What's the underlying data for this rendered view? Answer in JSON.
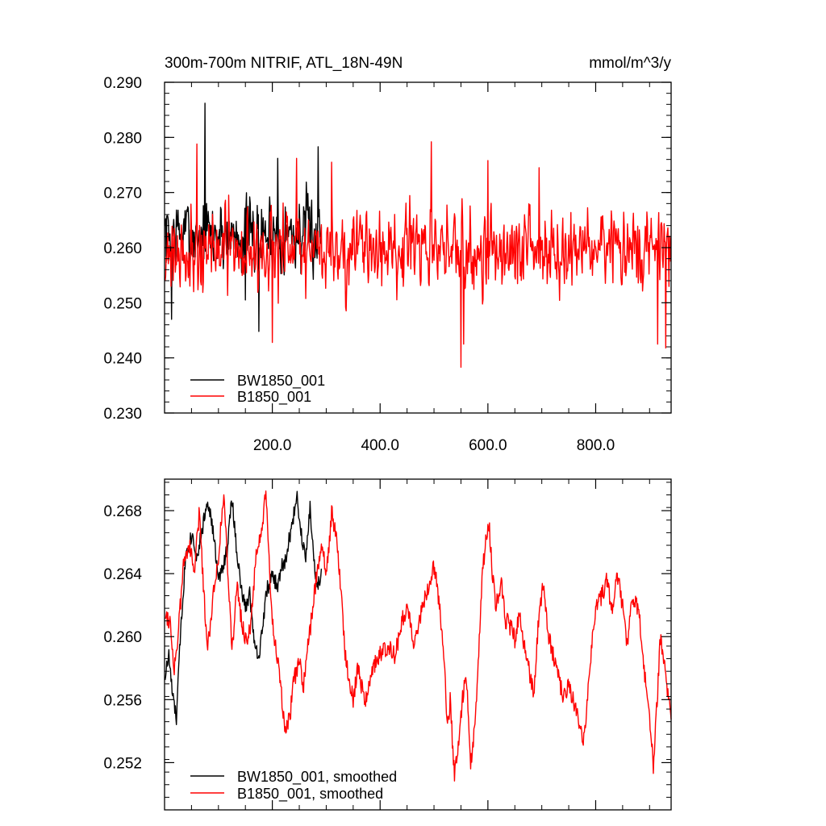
{
  "colors": {
    "series_a": "#000000",
    "series_b": "#ff0000",
    "frame": "#000000",
    "background": "#ffffff"
  },
  "chart_data": [
    {
      "type": "line",
      "title": "300m-700m NITRIF, ATL_18N-49N",
      "units": "mmol/m^3/y",
      "xlim": [
        0,
        940
      ],
      "ylim": [
        0.23,
        0.29
      ],
      "x_ticks": [
        200,
        400,
        600,
        800
      ],
      "x_tick_labels": [
        "200.0",
        "400.0",
        "600.0",
        "800.0"
      ],
      "y_ticks": [
        0.23,
        0.24,
        0.25,
        0.26,
        0.27,
        0.28,
        0.29
      ],
      "y_tick_labels": [
        "0.230",
        "0.240",
        "0.250",
        "0.260",
        "0.270",
        "0.280",
        "0.290"
      ],
      "legend_position": "bottom-left",
      "grid": false,
      "series": [
        {
          "name": "BW1850_001",
          "color": "#000000",
          "x_start": 1,
          "n": 291,
          "mean": 0.2625,
          "noise": 0.0055,
          "seed": 7,
          "peaks": [
            [
              75,
              0.2862
            ],
            [
              210,
              0.2762
            ],
            [
              285,
              0.2783
            ]
          ],
          "dips": [
            [
              13,
              0.247
            ],
            [
              175,
              0.2448
            ],
            [
              150,
              0.2505
            ]
          ]
        },
        {
          "name": "B1850_001",
          "color": "#ff0000",
          "x_start": 1,
          "n": 939,
          "mean": 0.2595,
          "noise": 0.0058,
          "seed": 21,
          "peaks": [
            [
              60,
              0.2788
            ],
            [
              495,
              0.2792
            ],
            [
              600,
              0.2758
            ],
            [
              245,
              0.2762
            ],
            [
              695,
              0.2745
            ],
            [
              310,
              0.2755
            ]
          ],
          "dips": [
            [
              550,
              0.2383
            ],
            [
              200,
              0.2428
            ],
            [
              930,
              0.2418
            ],
            [
              915,
              0.2425
            ],
            [
              555,
              0.2425
            ]
          ]
        }
      ]
    },
    {
      "type": "line",
      "xlim": [
        0,
        940
      ],
      "ylim": [
        0.249,
        0.27
      ],
      "x_ticks": [
        200,
        400,
        600,
        800
      ],
      "x_tick_labels": [],
      "y_ticks": [
        0.252,
        0.256,
        0.26,
        0.264,
        0.268
      ],
      "y_tick_labels": [
        "0.252",
        "0.256",
        "0.260",
        "0.264",
        "0.268"
      ],
      "legend_position": "bottom-left",
      "grid": false,
      "series": [
        {
          "name": "BW1850_001, smoothed",
          "color": "#000000",
          "knots": [
            [
              1,
              0.2575
            ],
            [
              8,
              0.2588
            ],
            [
              15,
              0.2562
            ],
            [
              22,
              0.2548
            ],
            [
              30,
              0.2605
            ],
            [
              40,
              0.2655
            ],
            [
              52,
              0.2665
            ],
            [
              60,
              0.265
            ],
            [
              70,
              0.2668
            ],
            [
              80,
              0.2688
            ],
            [
              92,
              0.2662
            ],
            [
              100,
              0.2635
            ],
            [
              108,
              0.2645
            ],
            [
              116,
              0.2655
            ],
            [
              125,
              0.2688
            ],
            [
              133,
              0.2658
            ],
            [
              142,
              0.263
            ],
            [
              150,
              0.2618
            ],
            [
              158,
              0.2628
            ],
            [
              165,
              0.2602
            ],
            [
              175,
              0.2585
            ],
            [
              182,
              0.2608
            ],
            [
              190,
              0.263
            ],
            [
              200,
              0.2638
            ],
            [
              210,
              0.2632
            ],
            [
              218,
              0.2645
            ],
            [
              225,
              0.2648
            ],
            [
              230,
              0.266
            ],
            [
              238,
              0.2672
            ],
            [
              245,
              0.2692
            ],
            [
              252,
              0.2668
            ],
            [
              262,
              0.2652
            ],
            [
              270,
              0.2682
            ],
            [
              278,
              0.2645
            ],
            [
              285,
              0.2632
            ],
            [
              291,
              0.2642
            ]
          ],
          "noise": 0.0005,
          "seed": 33
        },
        {
          "name": "B1850_001, smoothed",
          "color": "#ff0000",
          "knots": [
            [
              1,
              0.2615
            ],
            [
              10,
              0.261
            ],
            [
              18,
              0.258
            ],
            [
              25,
              0.26
            ],
            [
              35,
              0.2645
            ],
            [
              45,
              0.266
            ],
            [
              55,
              0.264
            ],
            [
              65,
              0.268
            ],
            [
              72,
              0.2632
            ],
            [
              80,
              0.2592
            ],
            [
              88,
              0.262
            ],
            [
              100,
              0.2652
            ],
            [
              110,
              0.269
            ],
            [
              118,
              0.264
            ],
            [
              125,
              0.2592
            ],
            [
              135,
              0.2632
            ],
            [
              142,
              0.2612
            ],
            [
              150,
              0.2598
            ],
            [
              160,
              0.2605
            ],
            [
              170,
              0.2655
            ],
            [
              178,
              0.266
            ],
            [
              188,
              0.269
            ],
            [
              195,
              0.264
            ],
            [
              200,
              0.261
            ],
            [
              208,
              0.259
            ],
            [
              215,
              0.2568
            ],
            [
              225,
              0.2538
            ],
            [
              232,
              0.2548
            ],
            [
              240,
              0.2572
            ],
            [
              250,
              0.2585
            ],
            [
              258,
              0.2568
            ],
            [
              265,
              0.259
            ],
            [
              275,
              0.2618
            ],
            [
              283,
              0.2642
            ],
            [
              292,
              0.266
            ],
            [
              300,
              0.264
            ],
            [
              305,
              0.2655
            ],
            [
              310,
              0.268
            ],
            [
              318,
              0.2665
            ],
            [
              325,
              0.264
            ],
            [
              335,
              0.259
            ],
            [
              342,
              0.2575
            ],
            [
              350,
              0.256
            ],
            [
              358,
              0.258
            ],
            [
              365,
              0.257
            ],
            [
              372,
              0.256
            ],
            [
              380,
              0.257
            ],
            [
              392,
              0.2585
            ],
            [
              405,
              0.259
            ],
            [
              418,
              0.2595
            ],
            [
              428,
              0.2588
            ],
            [
              440,
              0.261
            ],
            [
              452,
              0.2618
            ],
            [
              462,
              0.2598
            ],
            [
              470,
              0.2605
            ],
            [
              480,
              0.2622
            ],
            [
              490,
              0.263
            ],
            [
              500,
              0.2645
            ],
            [
              510,
              0.262
            ],
            [
              518,
              0.2592
            ],
            [
              525,
              0.254
            ],
            [
              530,
              0.256
            ],
            [
              538,
              0.251
            ],
            [
              545,
              0.2532
            ],
            [
              552,
              0.2558
            ],
            [
              560,
              0.2575
            ],
            [
              568,
              0.252
            ],
            [
              575,
              0.254
            ],
            [
              582,
              0.2582
            ],
            [
              590,
              0.264
            ],
            [
              596,
              0.266
            ],
            [
              602,
              0.2672
            ],
            [
              608,
              0.2642
            ],
            [
              615,
              0.262
            ],
            [
              625,
              0.2635
            ],
            [
              632,
              0.261
            ],
            [
              640,
              0.2608
            ],
            [
              650,
              0.2598
            ],
            [
              658,
              0.2615
            ],
            [
              665,
              0.2598
            ],
            [
              675,
              0.258
            ],
            [
              685,
              0.2565
            ],
            [
              695,
              0.2615
            ],
            [
              703,
              0.2635
            ],
            [
              712,
              0.2602
            ],
            [
              720,
              0.259
            ],
            [
              730,
              0.2575
            ],
            [
              740,
              0.256
            ],
            [
              750,
              0.257
            ],
            [
              760,
              0.2558
            ],
            [
              768,
              0.255
            ],
            [
              775,
              0.2532
            ],
            [
              782,
              0.2548
            ],
            [
              790,
              0.2585
            ],
            [
              800,
              0.2618
            ],
            [
              810,
              0.2625
            ],
            [
              820,
              0.2635
            ],
            [
              830,
              0.2618
            ],
            [
              840,
              0.264
            ],
            [
              850,
              0.2618
            ],
            [
              858,
              0.2595
            ],
            [
              866,
              0.262
            ],
            [
              874,
              0.2625
            ],
            [
              882,
              0.2608
            ],
            [
              890,
              0.258
            ],
            [
              900,
              0.255
            ],
            [
              907,
              0.2518
            ],
            [
              914,
              0.256
            ],
            [
              920,
              0.26
            ],
            [
              928,
              0.258
            ],
            [
              935,
              0.256
            ],
            [
              940,
              0.2548
            ]
          ],
          "noise": 0.0006,
          "seed": 55
        }
      ]
    }
  ]
}
